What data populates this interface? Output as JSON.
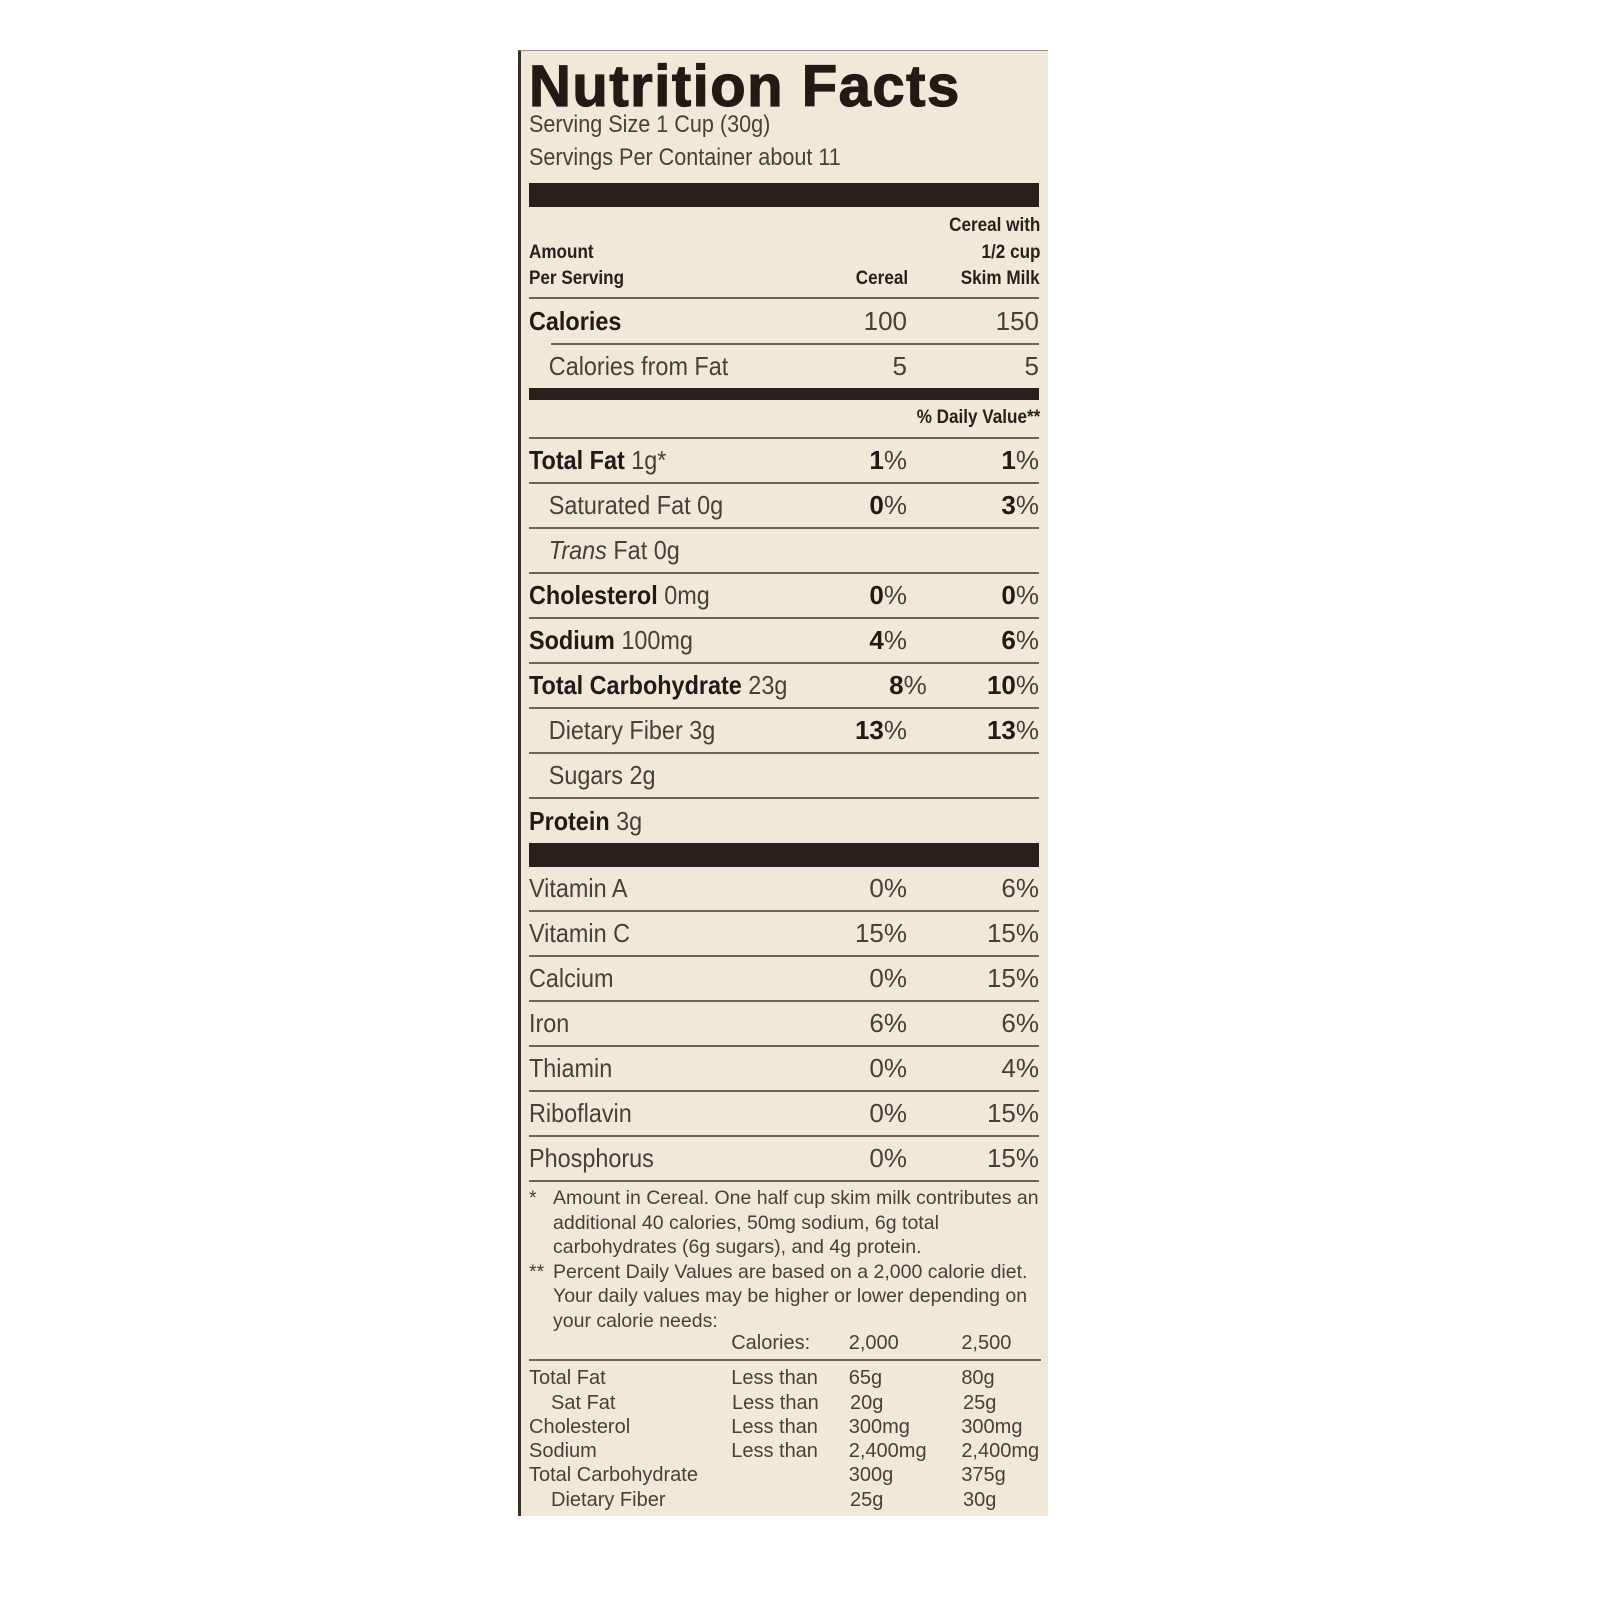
{
  "title": "Nutrition Facts",
  "serving_size": "Serving Size 1 Cup (30g)",
  "servings_per_container": "Servings Per Container about 11",
  "header": {
    "amount_line1": "Amount",
    "amount_line2": "Per Serving",
    "col1": "Cereal",
    "col2_line1": "Cereal with",
    "col2_line2": "1/2 cup",
    "col2_line3": "Skim Milk"
  },
  "calories": {
    "label": "Calories",
    "cereal": "100",
    "with_milk": "150"
  },
  "calories_from_fat": {
    "label": "Calories from Fat",
    "cereal": "5",
    "with_milk": "5"
  },
  "daily_value_header": "% Daily Value**",
  "nutrients": [
    {
      "name": "Total Fat",
      "amount": "1g*",
      "cereal": "1%",
      "with_milk": "1%",
      "bold": true,
      "sub": false
    },
    {
      "name": "Saturated Fat",
      "amount": "0g",
      "cereal": "0%",
      "with_milk": "3%",
      "bold": false,
      "sub": true
    },
    {
      "name": "Trans",
      "name_rest": "Fat",
      "amount": "0g",
      "cereal": "",
      "with_milk": "",
      "bold": false,
      "sub": true,
      "italic": true
    },
    {
      "name": "Cholesterol",
      "amount": "0mg",
      "cereal": "0%",
      "with_milk": "0%",
      "bold": true,
      "sub": false
    },
    {
      "name": "Sodium",
      "amount": "100mg",
      "cereal": "4%",
      "with_milk": "6%",
      "bold": true,
      "sub": false
    },
    {
      "name": "Total Carbohydrate",
      "amount": "23g",
      "cereal": "8%",
      "with_milk": "10%",
      "bold": true,
      "sub": false
    },
    {
      "name": "Dietary Fiber",
      "amount": "3g",
      "cereal": "13%",
      "with_milk": "13%",
      "bold": false,
      "sub": true
    },
    {
      "name": "Sugars",
      "amount": "2g",
      "cereal": "",
      "with_milk": "",
      "bold": false,
      "sub": true
    },
    {
      "name": "Protein",
      "amount": "3g",
      "cereal": "",
      "with_milk": "",
      "bold": true,
      "sub": false
    }
  ],
  "vitamins": [
    {
      "name": "Vitamin A",
      "cereal": "0%",
      "with_milk": "6%"
    },
    {
      "name": "Vitamin C",
      "cereal": "15%",
      "with_milk": "15%"
    },
    {
      "name": "Calcium",
      "cereal": "0%",
      "with_milk": "15%"
    },
    {
      "name": "Iron",
      "cereal": "6%",
      "with_milk": "6%"
    },
    {
      "name": "Thiamin",
      "cereal": "0%",
      "with_milk": "4%"
    },
    {
      "name": "Riboflavin",
      "cereal": "0%",
      "with_milk": "15%"
    },
    {
      "name": "Phosphorus",
      "cereal": "0%",
      "with_milk": "15%"
    }
  ],
  "footnotes": [
    {
      "mark": "*",
      "text": "Amount in Cereal. One half cup skim milk contributes an additional 40 calories, 50mg sodium, 6g total carbohydrates (6g sugars), and 4g protein."
    },
    {
      "mark": "**",
      "text": "Percent Daily Values are based on a 2,000 calorie diet. Your daily values may be higher or lower depending on your calorie needs:"
    }
  ],
  "dv_table": {
    "header": [
      "",
      "Calories:",
      "2,000",
      "2,500"
    ],
    "rows": [
      [
        "Total Fat",
        "Less than",
        "65g",
        "80g"
      ],
      [
        "Sat Fat",
        "Less than",
        "20g",
        "25g"
      ],
      [
        "Cholesterol",
        "Less than",
        "300mg",
        "300mg"
      ],
      [
        "Sodium",
        "Less than",
        "2,400mg",
        "2,400mg"
      ],
      [
        "Total Carbohydrate",
        "",
        "300g",
        "375g"
      ],
      [
        "Dietary Fiber",
        "",
        "25g",
        "30g"
      ]
    ]
  },
  "colors": {
    "background": "#f0e9da",
    "ink": "#2a201b"
  }
}
